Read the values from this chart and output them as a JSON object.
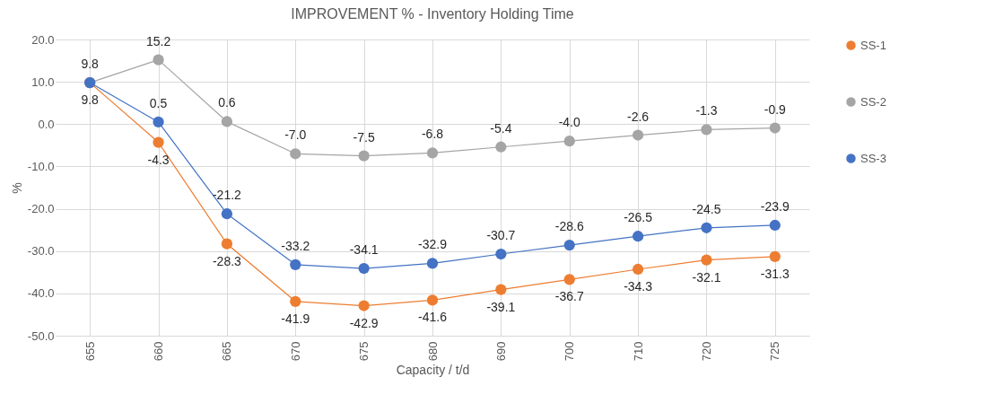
{
  "chart_data": {
    "type": "line",
    "title": "IMPROVEMENT % - Inventory Holding Time",
    "xlabel": "Capacity / t/d",
    "ylabel": "%",
    "categories": [
      "655",
      "660",
      "665",
      "670",
      "675",
      "680",
      "690",
      "700",
      "710",
      "720",
      "725"
    ],
    "series": [
      {
        "name": "SS-1",
        "color": "#ed7d31",
        "values": [
          9.8,
          -4.3,
          -28.3,
          -41.9,
          -42.9,
          -41.6,
          -39.1,
          -36.7,
          -34.3,
          -32.1,
          -31.3
        ],
        "value_labels": [
          "9.8",
          "-4.3",
          "-28.3",
          "-41.9",
          "-42.9",
          "-41.6",
          "-39.1",
          "-36.7",
          "-34.3",
          "-32.1",
          "-31.3"
        ]
      },
      {
        "name": "SS-2",
        "color": "#a5a5a5",
        "values": [
          9.8,
          15.2,
          0.6,
          -7.0,
          -7.5,
          -6.8,
          -5.4,
          -4.0,
          -2.6,
          -1.3,
          -0.9
        ],
        "value_labels": [
          null,
          "15.2",
          "0.6",
          "-7.0",
          "-7.5",
          "-6.8",
          "-5.4",
          "-4.0",
          "-2.6",
          "-1.3",
          "-0.9"
        ]
      },
      {
        "name": "SS-3",
        "color": "#4472c4",
        "values": [
          9.8,
          0.5,
          -21.2,
          -33.2,
          -34.1,
          -32.9,
          -30.7,
          -28.6,
          -26.5,
          -24.5,
          -23.9
        ],
        "value_labels": [
          "9.8",
          "0.5",
          "-21.2",
          "-33.2",
          "-34.1",
          "-32.9",
          "-30.7",
          "-28.6",
          "-26.5",
          "-24.5",
          "-23.9"
        ]
      }
    ],
    "ylim": [
      -50,
      20
    ],
    "yticks": [
      {
        "value": -50,
        "label": "-50.0"
      },
      {
        "value": -40,
        "label": "-40.0"
      },
      {
        "value": -30,
        "label": "-30.0"
      },
      {
        "value": -20,
        "label": "-20.0"
      },
      {
        "value": -10,
        "label": "-10.0"
      },
      {
        "value": 0,
        "label": "0.0"
      },
      {
        "value": 10,
        "label": "10.0"
      },
      {
        "value": 20,
        "label": "20.0"
      }
    ],
    "grid": true,
    "legend": "right",
    "marker": "circle"
  }
}
